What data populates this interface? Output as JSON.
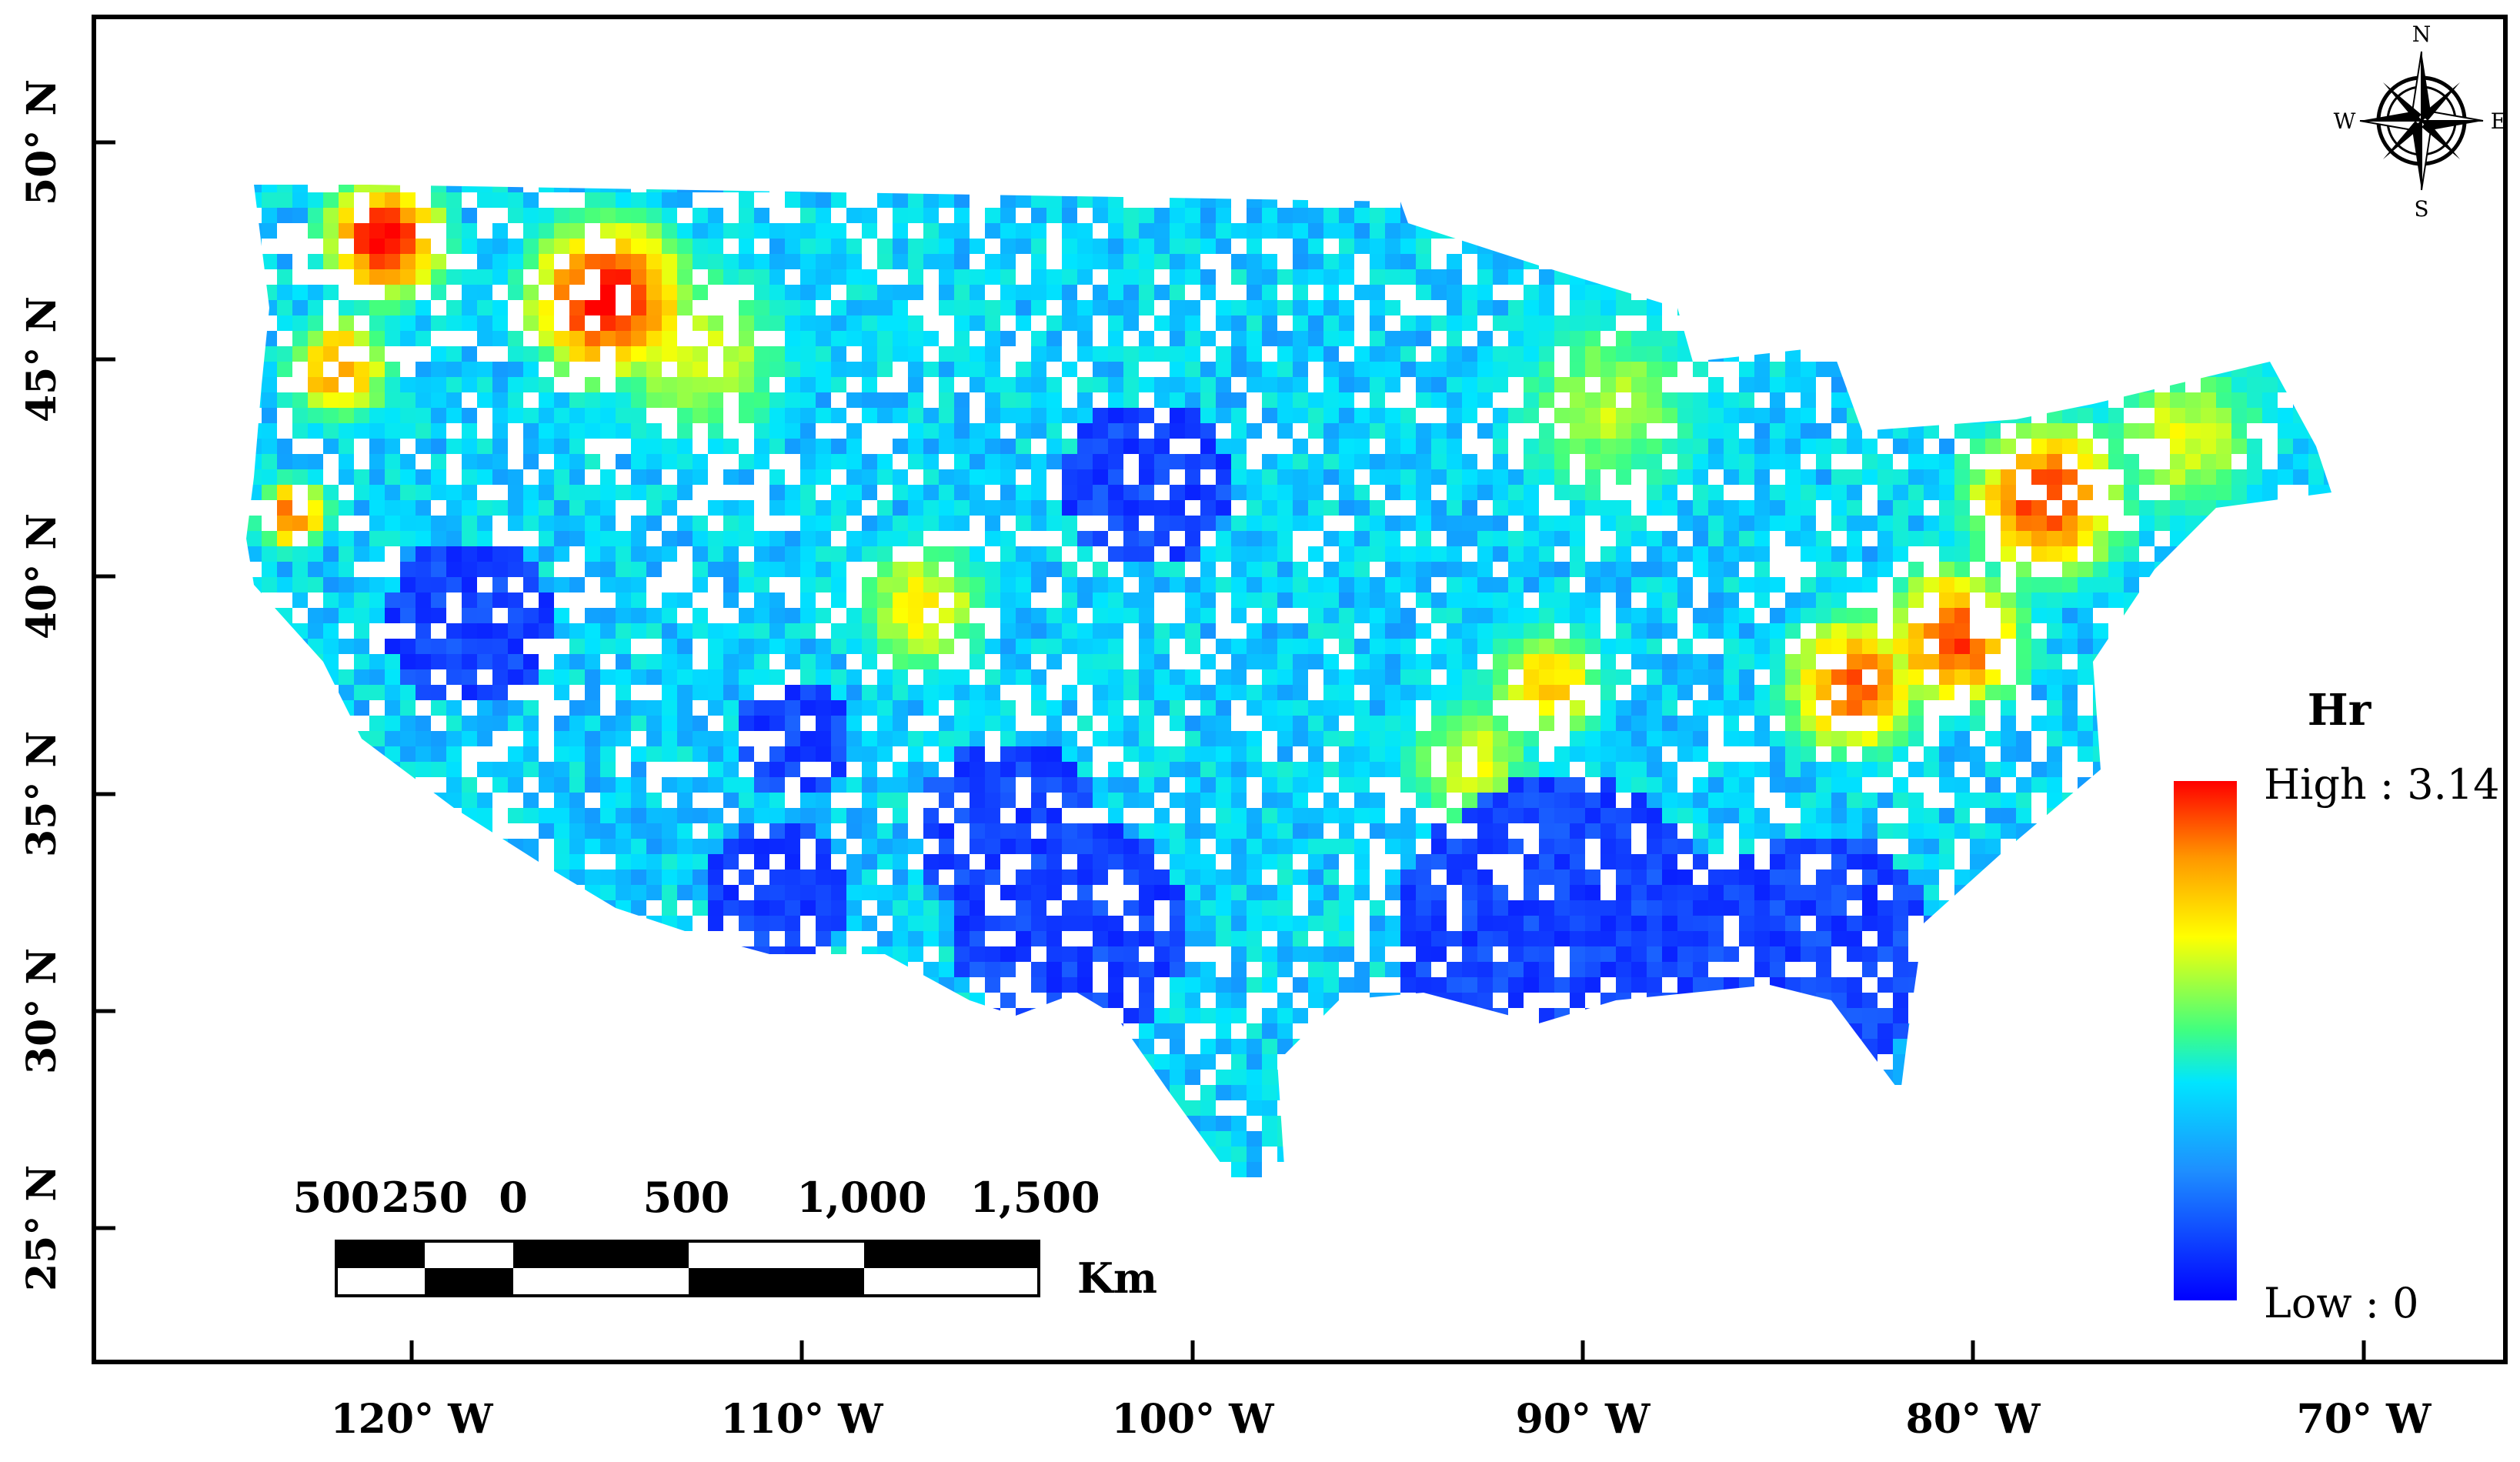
{
  "map": {
    "legend": {
      "title": "Hr",
      "high_label": "High : 3.14",
      "low_label": "Low : 0",
      "ramp_colors": [
        "#0000ff",
        "#1e6fff",
        "#00e5ff",
        "#40ff80",
        "#ffff00",
        "#ff9900",
        "#ff0000"
      ]
    },
    "scale_bar": {
      "tick_labels": [
        "500",
        "250",
        "0",
        "500",
        "1,000",
        "1,500"
      ],
      "unit": "Km"
    },
    "compass": {
      "n": "N",
      "s": "S",
      "e": "E",
      "w": "W"
    },
    "lat_labels": [
      "50° N",
      "45° N",
      "40° N",
      "35° N",
      "30° N",
      "25° N"
    ],
    "lon_labels": [
      "120° W",
      "110° W",
      "100° W",
      "90° W",
      "80° W",
      "70° W"
    ],
    "colors": {
      "frame": "#000000",
      "low": "#0000ff",
      "mid": "#00e5ff",
      "high": "#ff0000"
    }
  }
}
